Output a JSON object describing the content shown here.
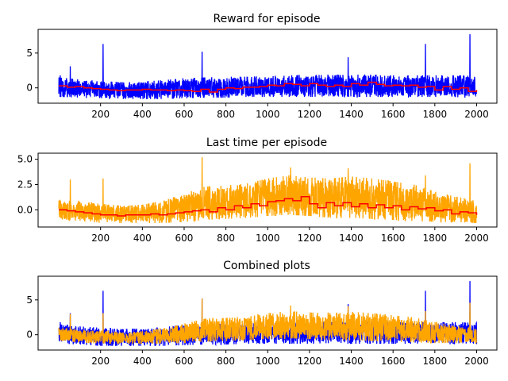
{
  "chart_data": [
    {
      "type": "line",
      "title": "Reward for episode",
      "xlabel": "",
      "ylabel": "",
      "xlim": [
        -99,
        2097
      ],
      "ylim": [
        -2.2,
        8.4
      ],
      "xticks": [
        200,
        400,
        600,
        800,
        1000,
        1200,
        1400,
        1600,
        1800,
        2000
      ],
      "xtick_labels": [
        "200",
        "400",
        "600",
        "800",
        "1000",
        "1200",
        "1400",
        "1600",
        "1800",
        "2000"
      ],
      "yticks": [
        0,
        5
      ],
      "ytick_labels": [
        "0",
        "5"
      ],
      "grid": false,
      "series": [
        {
          "color": "#0000ff",
          "kind": "noisy-band",
          "x": [
            0,
            100,
            200,
            300,
            400,
            500,
            600,
            700,
            800,
            900,
            1000,
            1100,
            1200,
            1300,
            1400,
            1500,
            1600,
            1700,
            1800,
            1900,
            2000
          ],
          "upper": [
            1.5,
            1.2,
            1.0,
            0.8,
            0.9,
            1.1,
            1.4,
            1.5,
            1.6,
            1.6,
            1.7,
            1.8,
            1.9,
            1.8,
            1.9,
            1.9,
            1.8,
            1.8,
            1.8,
            1.8,
            1.7
          ],
          "lower": [
            -1.3,
            -1.4,
            -1.6,
            -1.6,
            -1.6,
            -1.6,
            -1.5,
            -1.4,
            -1.4,
            -1.3,
            -1.3,
            -1.3,
            -1.3,
            -1.2,
            -1.3,
            -1.3,
            -1.3,
            -1.3,
            -1.3,
            -1.4,
            -1.4
          ],
          "spikes": [
            [
              7,
              1.8
            ],
            [
              55,
              3.1
            ],
            [
              212,
              6.3
            ],
            [
              686,
              5.2
            ],
            [
              1385,
              4.4
            ],
            [
              1755,
              6.3
            ],
            [
              1968,
              7.7
            ]
          ]
        },
        {
          "color": "#ff0000",
          "kind": "step",
          "x": [
            0,
            40,
            80,
            120,
            160,
            200,
            240,
            280,
            320,
            360,
            400,
            440,
            480,
            520,
            560,
            600,
            640,
            680,
            720,
            760,
            800,
            840,
            880,
            920,
            960,
            1000,
            1040,
            1080,
            1120,
            1160,
            1200,
            1240,
            1280,
            1320,
            1360,
            1400,
            1440,
            1480,
            1520,
            1560,
            1600,
            1640,
            1680,
            1720,
            1760,
            1800,
            1840,
            1880,
            1920,
            1960,
            2000
          ],
          "y": [
            0.3,
            0.1,
            0.2,
            0.0,
            -0.1,
            -0.2,
            -0.3,
            -0.4,
            -0.3,
            -0.3,
            -0.2,
            -0.3,
            -0.3,
            -0.4,
            -0.3,
            -0.4,
            -0.5,
            -0.2,
            -0.6,
            -0.2,
            0.0,
            -0.1,
            0.1,
            0.1,
            0.2,
            0.4,
            0.3,
            0.6,
            0.5,
            0.3,
            0.6,
            0.4,
            0.2,
            0.4,
            0.2,
            0.6,
            0.4,
            0.8,
            0.5,
            0.3,
            0.4,
            0.3,
            0.4,
            0.1,
            0.2,
            -0.3,
            0.2,
            -0.2,
            0.0,
            -0.5,
            -0.3
          ]
        }
      ]
    },
    {
      "type": "line",
      "title": "Last time per episode",
      "xlabel": "",
      "ylabel": "",
      "xlim": [
        -99,
        2097
      ],
      "ylim": [
        -1.7,
        5.6
      ],
      "xticks": [
        200,
        400,
        600,
        800,
        1000,
        1200,
        1400,
        1600,
        1800,
        2000
      ],
      "xtick_labels": [
        "200",
        "400",
        "600",
        "800",
        "1000",
        "1200",
        "1400",
        "1600",
        "1800",
        "2000"
      ],
      "yticks": [
        0.0,
        2.5,
        5.0
      ],
      "ytick_labels": [
        "0.0",
        "2.5",
        "5.0"
      ],
      "grid": false,
      "series": [
        {
          "color": "#ffa500",
          "kind": "noisy-band",
          "x": [
            0,
            100,
            200,
            300,
            400,
            500,
            600,
            700,
            800,
            900,
            1000,
            1100,
            1200,
            1300,
            1400,
            1500,
            1600,
            1700,
            1800,
            1900,
            2000
          ],
          "upper": [
            1.0,
            0.8,
            0.6,
            0.4,
            0.5,
            0.9,
            1.6,
            2.3,
            2.4,
            2.6,
            3.1,
            3.4,
            3.2,
            3.1,
            3.3,
            3.1,
            2.8,
            2.5,
            1.8,
            1.3,
            1.0
          ],
          "lower": [
            -1.0,
            -1.1,
            -1.3,
            -1.3,
            -1.3,
            -1.3,
            -1.2,
            -1.0,
            -0.9,
            -0.8,
            -0.6,
            -0.5,
            -0.6,
            -0.8,
            -0.8,
            -0.9,
            -1.0,
            -1.1,
            -1.2,
            -1.2,
            -1.3
          ],
          "spikes": [
            [
              55,
              3.0
            ],
            [
              212,
              3.1
            ],
            [
              686,
              5.2
            ],
            [
              1110,
              4.2
            ],
            [
              1385,
              4.1
            ],
            [
              1755,
              3.4
            ],
            [
              1968,
              4.6
            ]
          ]
        },
        {
          "color": "#ff0000",
          "kind": "step",
          "x": [
            0,
            40,
            80,
            120,
            160,
            200,
            240,
            280,
            320,
            360,
            400,
            440,
            480,
            520,
            560,
            600,
            640,
            680,
            720,
            760,
            800,
            840,
            880,
            920,
            960,
            1000,
            1040,
            1080,
            1120,
            1160,
            1200,
            1240,
            1280,
            1320,
            1360,
            1400,
            1440,
            1480,
            1520,
            1560,
            1600,
            1640,
            1680,
            1720,
            1760,
            1800,
            1840,
            1880,
            1920,
            1960,
            2000
          ],
          "y": [
            0.0,
            -0.1,
            -0.2,
            -0.3,
            -0.4,
            -0.5,
            -0.5,
            -0.6,
            -0.5,
            -0.5,
            -0.5,
            -0.4,
            -0.5,
            -0.4,
            -0.3,
            -0.2,
            -0.1,
            0.0,
            -0.2,
            0.2,
            0.0,
            0.4,
            0.2,
            0.6,
            0.4,
            0.8,
            0.9,
            1.1,
            0.9,
            1.3,
            0.6,
            0.2,
            0.7,
            0.4,
            0.7,
            0.3,
            0.6,
            0.2,
            0.5,
            0.2,
            0.4,
            0.0,
            0.3,
            0.1,
            0.2,
            -0.1,
            0.0,
            -0.4,
            -0.2,
            -0.3,
            -0.5
          ]
        }
      ]
    },
    {
      "type": "line",
      "title": "Combined plots",
      "xlabel": "",
      "ylabel": "",
      "xlim": [
        -99,
        2097
      ],
      "ylim": [
        -2.2,
        8.4
      ],
      "xticks": [
        200,
        400,
        600,
        800,
        1000,
        1200,
        1400,
        1600,
        1800,
        2000
      ],
      "xtick_labels": [
        "200",
        "400",
        "600",
        "800",
        "1000",
        "1200",
        "1400",
        "1600",
        "1800",
        "2000"
      ],
      "yticks": [
        0,
        5
      ],
      "ytick_labels": [
        "0",
        "5"
      ],
      "grid": false,
      "series": [
        {
          "color": "#0000ff",
          "kind": "noisy-band",
          "x": [
            0,
            100,
            200,
            300,
            400,
            500,
            600,
            700,
            800,
            900,
            1000,
            1100,
            1200,
            1300,
            1400,
            1500,
            1600,
            1700,
            1800,
            1900,
            2000
          ],
          "upper": [
            1.5,
            1.2,
            1.0,
            0.8,
            0.9,
            1.1,
            1.4,
            1.5,
            1.6,
            1.6,
            1.7,
            1.8,
            1.9,
            1.8,
            1.9,
            1.9,
            1.8,
            1.8,
            1.8,
            1.8,
            1.7
          ],
          "lower": [
            -1.3,
            -1.4,
            -1.6,
            -1.6,
            -1.6,
            -1.6,
            -1.5,
            -1.4,
            -1.4,
            -1.3,
            -1.3,
            -1.3,
            -1.3,
            -1.2,
            -1.3,
            -1.3,
            -1.3,
            -1.3,
            -1.3,
            -1.4,
            -1.4
          ],
          "spikes": [
            [
              7,
              1.8
            ],
            [
              55,
              3.1
            ],
            [
              212,
              6.3
            ],
            [
              686,
              5.2
            ],
            [
              1385,
              4.4
            ],
            [
              1755,
              6.3
            ],
            [
              1968,
              7.7
            ]
          ]
        },
        {
          "color": "#ffa500",
          "kind": "noisy-band",
          "x": [
            0,
            100,
            200,
            300,
            400,
            500,
            600,
            700,
            800,
            900,
            1000,
            1100,
            1200,
            1300,
            1400,
            1500,
            1600,
            1700,
            1800,
            1900,
            2000
          ],
          "upper": [
            1.0,
            0.8,
            0.6,
            0.4,
            0.5,
            0.9,
            1.6,
            2.3,
            2.4,
            2.6,
            3.1,
            3.4,
            3.2,
            3.1,
            3.3,
            3.1,
            2.8,
            2.5,
            1.8,
            1.3,
            1.0
          ],
          "lower": [
            -1.0,
            -1.1,
            -1.3,
            -1.3,
            -1.3,
            -1.3,
            -1.2,
            -1.0,
            -0.9,
            -0.8,
            -0.6,
            -0.5,
            -0.6,
            -0.8,
            -0.8,
            -0.9,
            -1.0,
            -1.1,
            -1.2,
            -1.2,
            -1.3
          ],
          "spikes": [
            [
              55,
              3.0
            ],
            [
              212,
              3.1
            ],
            [
              686,
              5.2
            ],
            [
              1110,
              4.2
            ],
            [
              1385,
              4.1
            ],
            [
              1755,
              3.4
            ],
            [
              1968,
              4.6
            ]
          ]
        }
      ]
    }
  ]
}
